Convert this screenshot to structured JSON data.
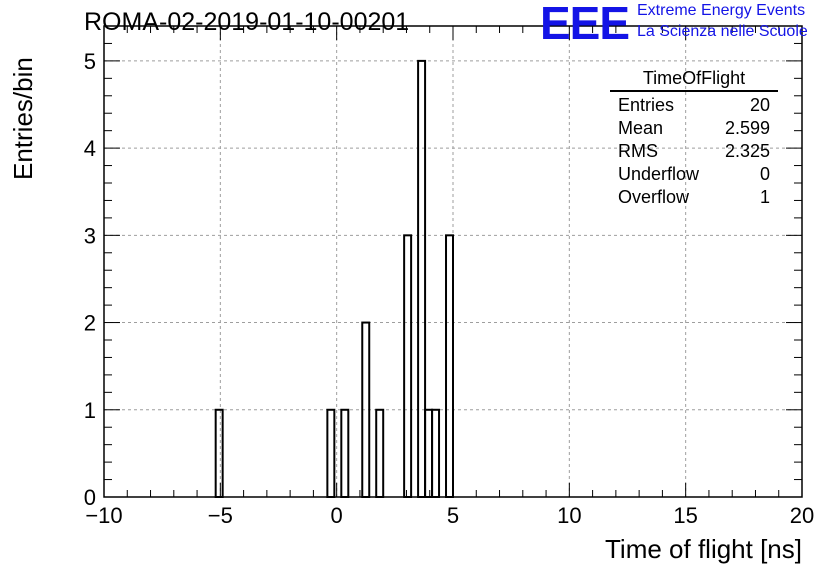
{
  "header": {
    "title": "ROMA-02-2019-01-10-00201",
    "logo_text": "EEE",
    "logo_line1": "Extreme Energy Events",
    "logo_line2": "La Scienza nelle Scuole"
  },
  "stats_box": {
    "title": "TimeOfFlight",
    "rows": [
      {
        "label": "Entries",
        "value": "20"
      },
      {
        "label": "Mean",
        "value": "2.599"
      },
      {
        "label": "RMS",
        "value": "2.325"
      },
      {
        "label": "Underflow",
        "value": "0"
      },
      {
        "label": "Overflow",
        "value": "1"
      }
    ]
  },
  "colors": {
    "logo": "#1414e6",
    "histogram": "#000000",
    "grid": "#9e9e9e"
  },
  "chart_data": {
    "type": "bar",
    "xlabel": "Time of flight [ns]",
    "ylabel": "Entries/bin",
    "xlim": [
      -10,
      20
    ],
    "ylim": [
      0,
      5.4
    ],
    "x_ticks": [
      -10,
      -5,
      0,
      5,
      10,
      15,
      20
    ],
    "x_tick_labels": [
      "−10",
      "−5",
      "0",
      "5",
      "10",
      "15",
      "20"
    ],
    "y_ticks": [
      0,
      1,
      2,
      3,
      4,
      5
    ],
    "y_tick_labels": [
      "0",
      "1",
      "2",
      "3",
      "4",
      "5"
    ],
    "grid": true,
    "bin_width": 0.3,
    "bins": [
      {
        "x": -5.2,
        "count": 1
      },
      {
        "x": -0.4,
        "count": 1
      },
      {
        "x": 0.2,
        "count": 1
      },
      {
        "x": 1.1,
        "count": 2
      },
      {
        "x": 1.7,
        "count": 1
      },
      {
        "x": 2.9,
        "count": 3
      },
      {
        "x": 3.5,
        "count": 5
      },
      {
        "x": 3.8,
        "count": 1
      },
      {
        "x": 4.1,
        "count": 1
      },
      {
        "x": 4.7,
        "count": 3
      }
    ]
  }
}
